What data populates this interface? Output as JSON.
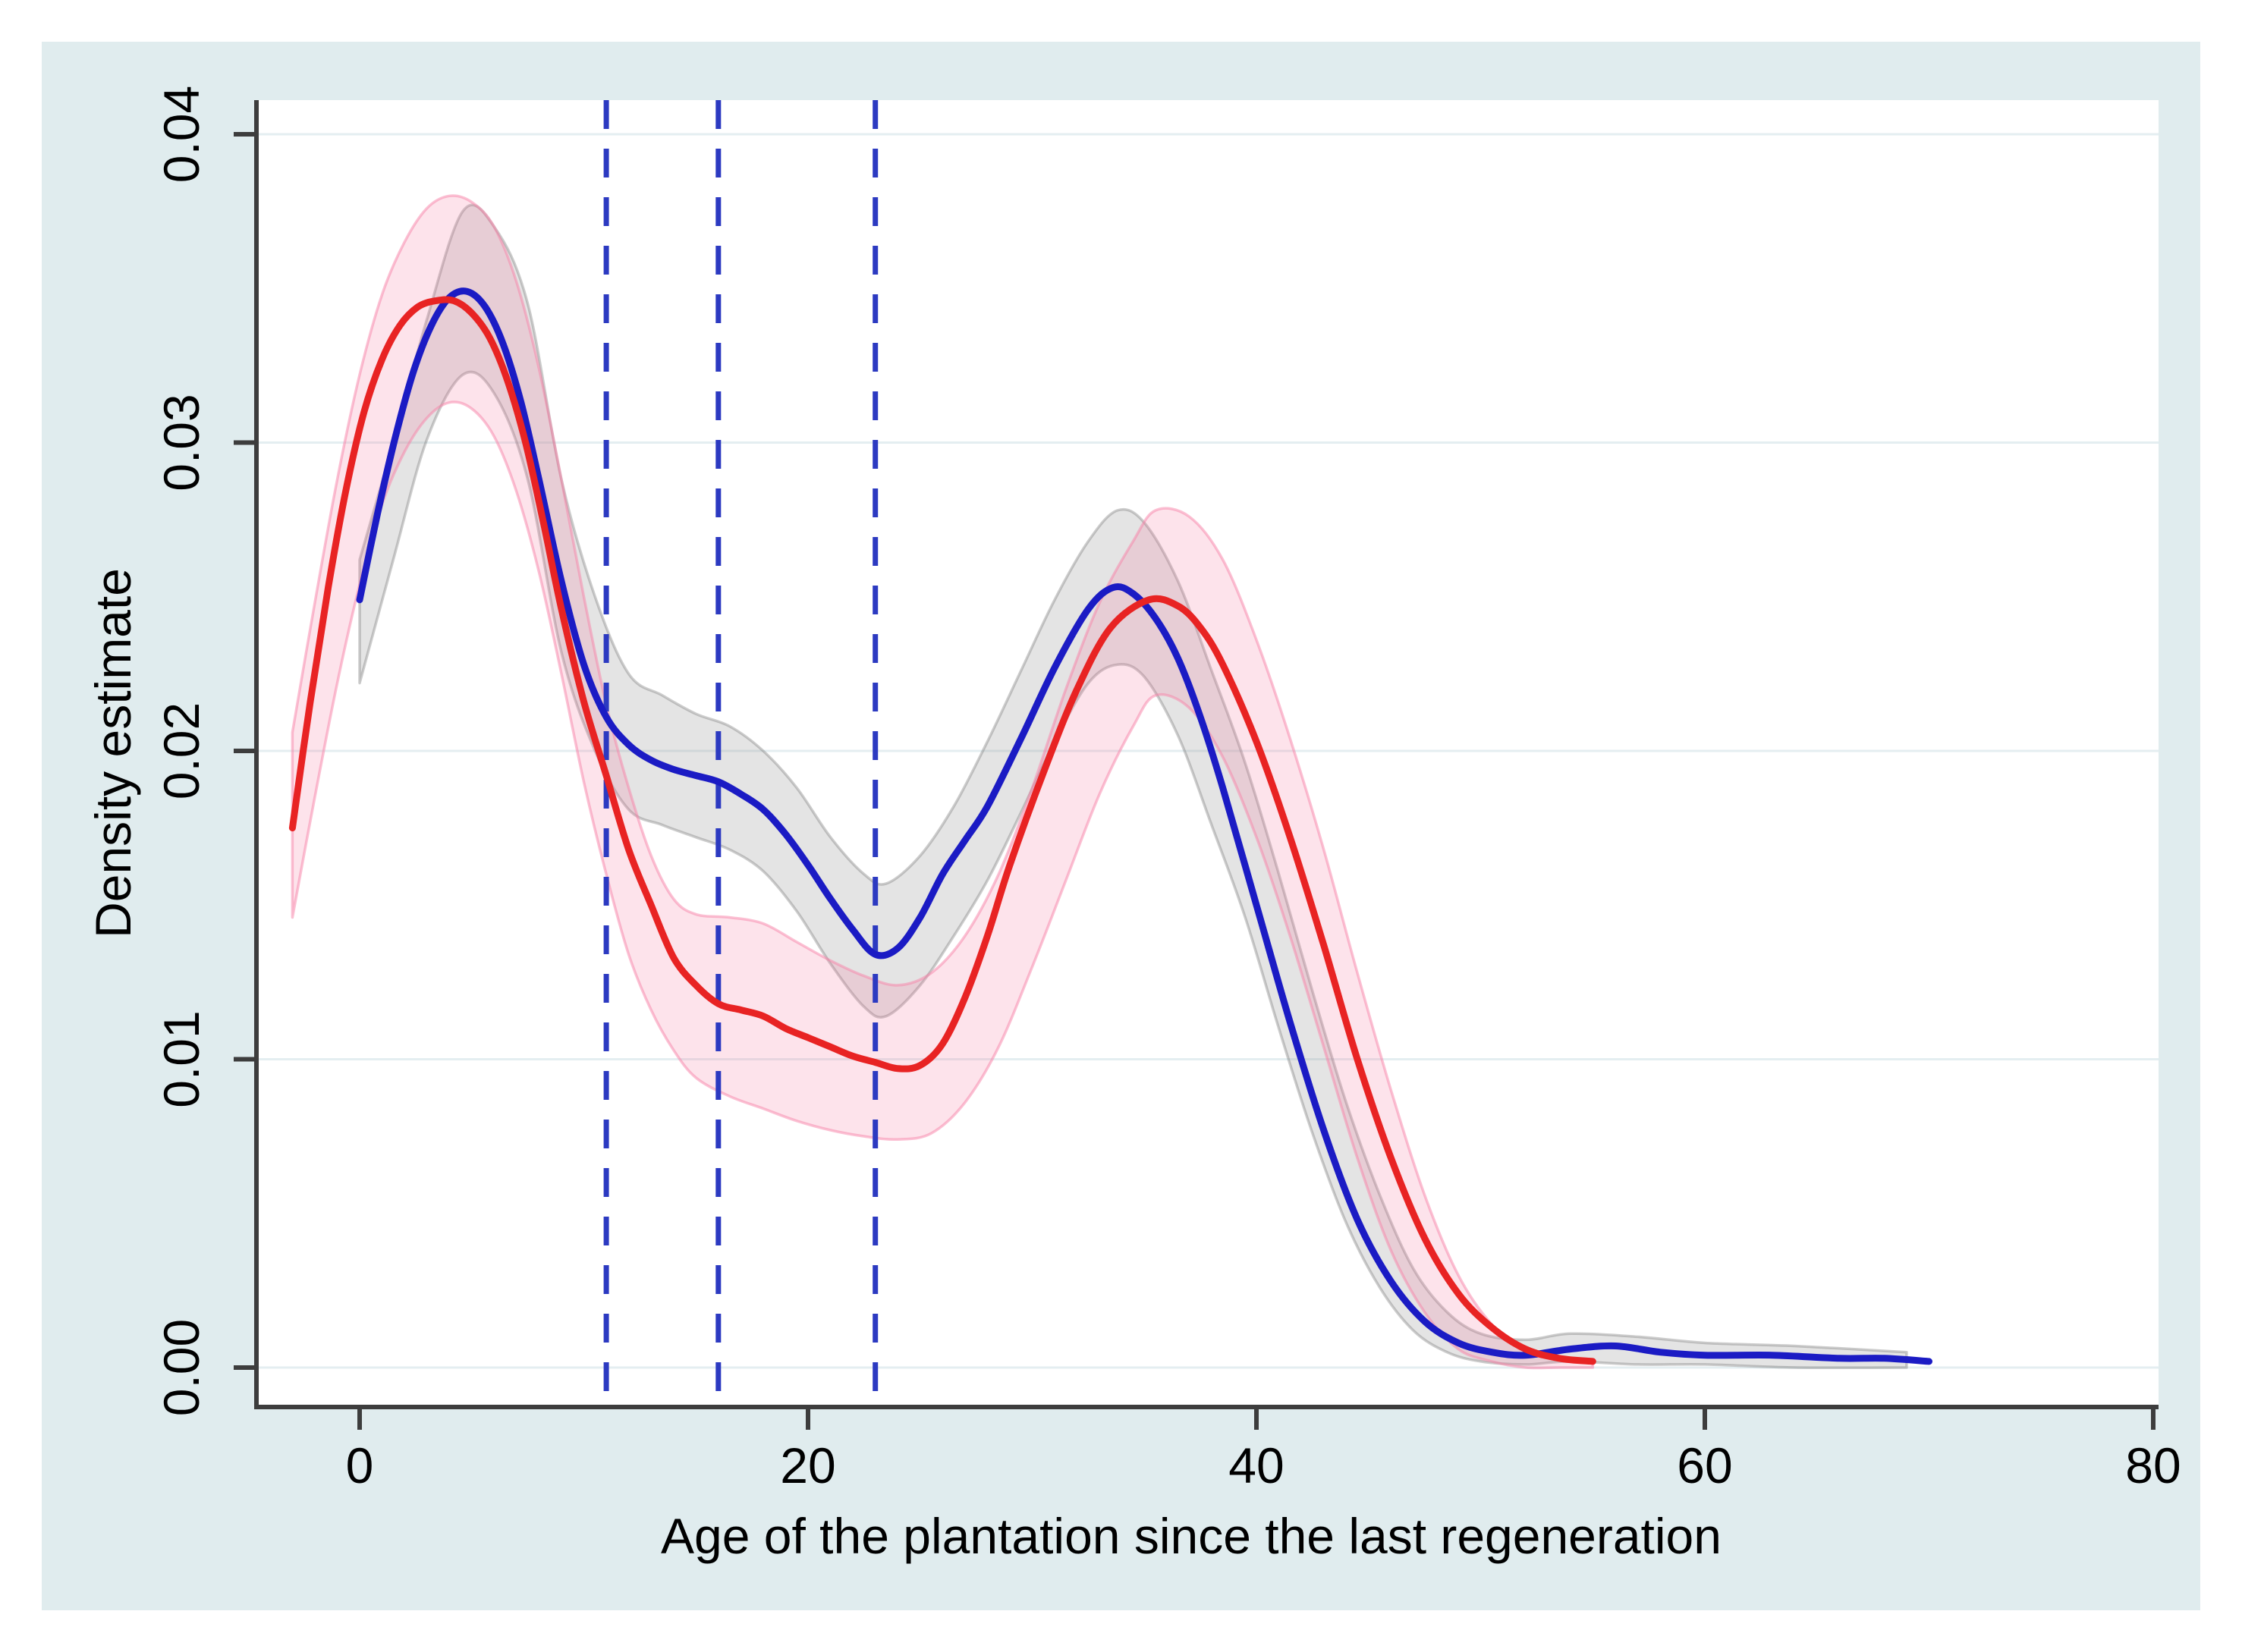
{
  "figure": {
    "x_axis_title": "Age of the plantation since the last regeneration",
    "y_axis_title": "Density estimate"
  },
  "chart_data": {
    "type": "line",
    "title": "",
    "xlabel": "Age of the plantation since the last regeneration",
    "ylabel": "Density estimate",
    "x_ticks": [
      0,
      20,
      40,
      60,
      80
    ],
    "x_tick_labels": [
      "0",
      "20",
      "40",
      "60",
      "80"
    ],
    "y_ticks": [
      0,
      0.01,
      0.02,
      0.03,
      0.04
    ],
    "y_tick_labels": [
      "0.00",
      "0.01",
      "0.02",
      "0.03",
      "0.04"
    ],
    "xlim": [
      -4.6,
      80.2
    ],
    "ylim": [
      -0.0013,
      0.0411
    ],
    "grid": "horizontal",
    "legend": "none",
    "reference_lines_x": [
      11,
      16,
      23
    ],
    "colors": {
      "panel_bg": "#e0ecee",
      "plot_bg": "#ffffff",
      "gridline": "#e4eef1",
      "axis": "#3d3d3d",
      "blue_line": "#1b1bc4",
      "red_line": "#e82323",
      "dashed_line": "#2c3ac1",
      "gray_band_fill": "rgba(150,150,150,0.26)",
      "gray_band_edge": "rgba(120,120,120,0.38)",
      "pink_band_fill": "rgba(247,116,157,0.20)",
      "pink_band_edge": "rgba(247,130,168,0.50)"
    },
    "series": [
      {
        "name": "blue density curve",
        "color": "#1b1bc4",
        "x": [
          0,
          0.8,
          1.6,
          2.4,
          3.2,
          4,
          4.8,
          5.6,
          6.4,
          7.2,
          8,
          9,
          10,
          11,
          12,
          13,
          14,
          15,
          16,
          17,
          18,
          19,
          20,
          21,
          22,
          23,
          24,
          25,
          26,
          27,
          28,
          29.5,
          31,
          32.5,
          33.6,
          34.5,
          35.5,
          36.5,
          37.5,
          38.5,
          40,
          41.5,
          43,
          44.5,
          46,
          47.5,
          49,
          50.5,
          52,
          54,
          56,
          58,
          60,
          63,
          66,
          68,
          70
        ],
        "y": [
          0.0249,
          0.0277,
          0.0302,
          0.0323,
          0.0338,
          0.0347,
          0.0349,
          0.0344,
          0.0332,
          0.0313,
          0.0288,
          0.0255,
          0.0228,
          0.0211,
          0.0202,
          0.0197,
          0.0194,
          0.0192,
          0.019,
          0.0186,
          0.0181,
          0.0173,
          0.0163,
          0.0152,
          0.0142,
          0.0134,
          0.0136,
          0.0146,
          0.016,
          0.0171,
          0.0182,
          0.0204,
          0.0227,
          0.0246,
          0.0253,
          0.0251,
          0.0243,
          0.023,
          0.0211,
          0.0188,
          0.015,
          0.0112,
          0.0077,
          0.0048,
          0.0028,
          0.0015,
          0.0008,
          0.0005,
          0.0004,
          0.0006,
          0.0007,
          0.0005,
          0.0004,
          0.0004,
          0.0003,
          0.0003,
          0.0002
        ]
      },
      {
        "name": "red density curve",
        "color": "#e82323",
        "x": [
          -3,
          -2.2,
          -1.4,
          -0.6,
          0.2,
          1,
          1.8,
          2.6,
          3.4,
          4.2,
          5,
          5.8,
          6.6,
          7.4,
          8.2,
          9,
          10,
          11,
          12,
          13,
          14,
          15,
          16,
          17,
          18,
          19,
          20,
          21,
          22,
          23,
          24,
          25,
          26,
          27,
          28,
          29,
          30.5,
          32,
          33.5,
          35.2,
          36.5,
          37.5,
          38.5,
          40,
          41.5,
          43,
          44.5,
          46,
          47.5,
          49,
          50.5,
          52,
          53.5,
          55
        ],
        "y": [
          0.0175,
          0.0216,
          0.0253,
          0.0285,
          0.031,
          0.0327,
          0.0338,
          0.0344,
          0.0346,
          0.0346,
          0.0342,
          0.0334,
          0.032,
          0.03,
          0.0274,
          0.0246,
          0.0216,
          0.0192,
          0.0168,
          0.015,
          0.0133,
          0.0124,
          0.0118,
          0.0116,
          0.0114,
          0.011,
          0.0107,
          0.0104,
          0.0101,
          0.0099,
          0.0097,
          0.0098,
          0.0105,
          0.012,
          0.014,
          0.0163,
          0.0193,
          0.022,
          0.024,
          0.0249,
          0.0247,
          0.024,
          0.0228,
          0.0203,
          0.0172,
          0.0137,
          0.01,
          0.0068,
          0.0042,
          0.0024,
          0.0013,
          0.0006,
          0.0003,
          0.0002
        ]
      }
    ],
    "bands": [
      {
        "name": "gray confidence band (blue curve)",
        "fill": "rgba(150,150,150,0.26)",
        "edge": "rgba(120,120,120,0.38)",
        "x": [
          0,
          1.5,
          3,
          4.6,
          6,
          7.5,
          9,
          10.5,
          12,
          13.5,
          15,
          16.5,
          18,
          19.5,
          21,
          22.5,
          23.5,
          25,
          26.5,
          28,
          29.5,
          31,
          32.5,
          33.8,
          35,
          36.5,
          38,
          39.5,
          41,
          42.5,
          44,
          45.5,
          47,
          48.5,
          50,
          52,
          54,
          57,
          60,
          64,
          69
        ],
        "lo": [
          0.0222,
          0.0262,
          0.0301,
          0.0322,
          0.0316,
          0.0288,
          0.0232,
          0.02,
          0.0181,
          0.0176,
          0.0172,
          0.0168,
          0.0161,
          0.0148,
          0.0131,
          0.0117,
          0.0114,
          0.0124,
          0.014,
          0.0158,
          0.018,
          0.0203,
          0.0222,
          0.0228,
          0.0224,
          0.0205,
          0.0176,
          0.0146,
          0.011,
          0.0076,
          0.0047,
          0.0026,
          0.0012,
          0.0005,
          0.0002,
          0.0001,
          0.0002,
          0.0001,
          0.0001,
          0.0,
          0.0
        ],
        "hi": [
          0.0262,
          0.03,
          0.034,
          0.0375,
          0.037,
          0.0345,
          0.0288,
          0.025,
          0.0225,
          0.0218,
          0.0212,
          0.0208,
          0.02,
          0.0188,
          0.0172,
          0.016,
          0.0157,
          0.0166,
          0.0182,
          0.0203,
          0.0226,
          0.0249,
          0.0268,
          0.0278,
          0.0274,
          0.0255,
          0.0226,
          0.0196,
          0.016,
          0.0122,
          0.0086,
          0.0056,
          0.0032,
          0.0018,
          0.0011,
          0.0009,
          0.0011,
          0.001,
          0.0008,
          0.0007,
          0.0005
        ]
      },
      {
        "name": "pink confidence band (red curve)",
        "fill": "rgba(247,116,157,0.20)",
        "edge": "rgba(247,130,168,0.50)",
        "x": [
          -3,
          -2,
          -1,
          0,
          1,
          2,
          3,
          4,
          5,
          6,
          7,
          8,
          9,
          10,
          11,
          12,
          13,
          14,
          15,
          16.5,
          18,
          19.5,
          21,
          22.5,
          24,
          25.5,
          27,
          28.5,
          30,
          31.5,
          33,
          34.5,
          35.5,
          37,
          38.5,
          40,
          41.5,
          43,
          44.5,
          46,
          47.5,
          49,
          50.5,
          52,
          53.5,
          55
        ],
        "lo": [
          0.0146,
          0.0185,
          0.0222,
          0.0254,
          0.028,
          0.0297,
          0.0308,
          0.0313,
          0.0311,
          0.0302,
          0.0284,
          0.0258,
          0.0225,
          0.019,
          0.016,
          0.0134,
          0.0116,
          0.0103,
          0.0094,
          0.0088,
          0.0084,
          0.008,
          0.0077,
          0.0075,
          0.0074,
          0.0076,
          0.0086,
          0.0104,
          0.013,
          0.0158,
          0.0186,
          0.0208,
          0.0218,
          0.0214,
          0.0198,
          0.0172,
          0.014,
          0.0104,
          0.0068,
          0.0038,
          0.0018,
          0.0006,
          0.0002,
          0.0,
          0.0,
          0.0
        ],
        "hi": [
          0.0206,
          0.0248,
          0.0288,
          0.0322,
          0.0348,
          0.0365,
          0.0376,
          0.038,
          0.0378,
          0.037,
          0.0352,
          0.0324,
          0.0288,
          0.025,
          0.0215,
          0.0188,
          0.0166,
          0.0152,
          0.0147,
          0.0146,
          0.0144,
          0.0138,
          0.0132,
          0.0127,
          0.0124,
          0.0128,
          0.014,
          0.016,
          0.0188,
          0.022,
          0.0248,
          0.0268,
          0.0278,
          0.0276,
          0.0262,
          0.0236,
          0.0204,
          0.0168,
          0.0128,
          0.009,
          0.0056,
          0.003,
          0.0014,
          0.0006,
          0.0003,
          0.0002
        ]
      }
    ]
  }
}
